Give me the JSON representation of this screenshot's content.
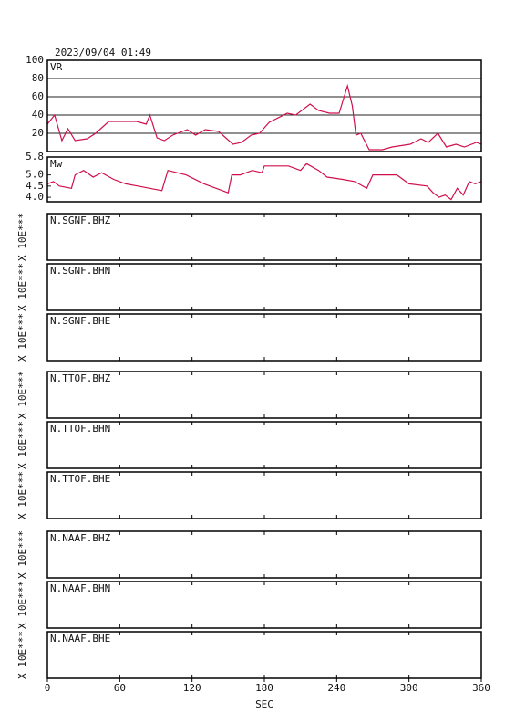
{
  "title": "2023/09/04 01:49",
  "x_axis": {
    "label": "SEC",
    "lim": [
      0,
      360
    ],
    "ticks": [
      0,
      60,
      120,
      180,
      240,
      300,
      360
    ]
  },
  "chart_data": [
    {
      "type": "line",
      "label": "VR",
      "color": "#d0104c",
      "grid": true,
      "xlim": [
        0,
        360
      ],
      "ylim": [
        0,
        100
      ],
      "yticks": [
        20,
        40,
        60,
        80,
        100
      ],
      "x": [
        0,
        6,
        12,
        17,
        23,
        33,
        40,
        51,
        74,
        82,
        85,
        91,
        97,
        104,
        116,
        123,
        131,
        142,
        154,
        161,
        169,
        176,
        184,
        199,
        206,
        218,
        225,
        234,
        242,
        249,
        253,
        256,
        260,
        267,
        278,
        286,
        301,
        310,
        316,
        324,
        331,
        339,
        346,
        356,
        360
      ],
      "values": [
        30,
        40,
        12,
        25,
        12,
        14,
        20,
        33,
        33,
        30,
        40,
        15,
        12,
        18,
        24,
        18,
        24,
        22,
        8,
        10,
        18,
        20,
        32,
        42,
        40,
        52,
        45,
        42,
        42,
        72,
        50,
        18,
        20,
        2,
        2,
        5,
        8,
        14,
        10,
        20,
        5,
        8,
        5,
        10,
        8
      ]
    },
    {
      "type": "line",
      "label": "Mw",
      "color": "#d0104c",
      "grid": false,
      "xlim": [
        0,
        360
      ],
      "ylim": [
        3.8,
        5.8
      ],
      "yticks": [
        {
          "value": 4,
          "label": "4.0"
        },
        4.5,
        {
          "value": 5,
          "label": "5.0"
        },
        5.8
      ],
      "x": [
        0,
        5,
        10,
        20,
        23,
        30,
        38,
        45,
        55,
        65,
        75,
        85,
        95,
        100,
        115,
        130,
        140,
        150,
        153,
        160,
        170,
        178,
        180,
        200,
        210,
        215,
        225,
        232,
        245,
        255,
        265,
        270,
        290,
        300,
        315,
        320,
        325,
        330,
        335,
        340,
        345,
        350,
        355,
        360
      ],
      "values": [
        4.6,
        4.7,
        4.5,
        4.4,
        5.0,
        5.2,
        4.9,
        5.1,
        4.8,
        4.6,
        4.5,
        4.4,
        4.3,
        5.2,
        5.0,
        4.6,
        4.4,
        4.2,
        5.0,
        5.0,
        5.2,
        5.1,
        5.4,
        5.4,
        5.2,
        5.5,
        5.2,
        4.9,
        4.8,
        4.7,
        4.4,
        5.0,
        5.0,
        4.6,
        4.5,
        4.2,
        4.0,
        4.1,
        3.9,
        4.4,
        4.1,
        4.7,
        4.6,
        4.7
      ]
    }
  ],
  "traces": [
    {
      "name": "N.SGNF.BHZ",
      "scale_label": "X 10E***"
    },
    {
      "name": "N.SGNF.BHN",
      "scale_label": "X 10E***"
    },
    {
      "name": "N.SGNF.BHE",
      "scale_label": "X 10E***"
    },
    {
      "name": "N.TTOF.BHZ",
      "scale_label": "X 10E***"
    },
    {
      "name": "N.TTOF.BHN",
      "scale_label": "X 10E***"
    },
    {
      "name": "N.TTOF.BHE",
      "scale_label": "X 10E***"
    },
    {
      "name": "N.NAAF.BHZ",
      "scale_label": "X 10E***"
    },
    {
      "name": "N.NAAF.BHN",
      "scale_label": "X 10E***"
    },
    {
      "name": "N.NAAF.BHE",
      "scale_label": "X 10E***"
    }
  ]
}
